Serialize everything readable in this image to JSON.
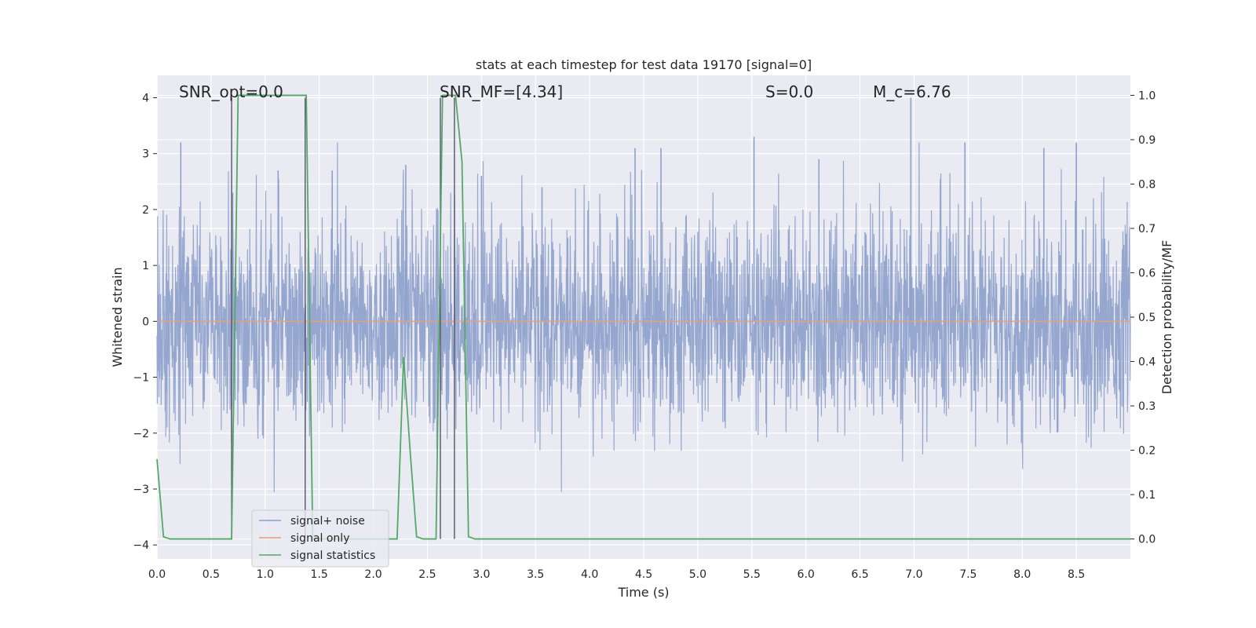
{
  "chart_data": {
    "type": "line",
    "title": "stats at each timestep for test data 19170 [signal=0]",
    "xlabel": "Time (s)",
    "ylabel": "Whitened strain",
    "y2label": "Detection probability/MF",
    "xlim": [
      0.0,
      9.0
    ],
    "ylim": [
      -4.25,
      4.4
    ],
    "y2lim": [
      -0.045,
      1.045
    ],
    "xticks": [
      "0.0",
      "0.5",
      "1.0",
      "1.5",
      "2.0",
      "2.5",
      "3.0",
      "3.5",
      "4.0",
      "4.5",
      "5.0",
      "5.5",
      "6.0",
      "6.5",
      "7.0",
      "7.5",
      "8.0",
      "8.5"
    ],
    "yticks": [
      "−4",
      "−3",
      "−2",
      "−1",
      "0",
      "1",
      "2",
      "3",
      "4"
    ],
    "y2ticks": [
      "0.0",
      "0.1",
      "0.2",
      "0.3",
      "0.4",
      "0.5",
      "0.6",
      "0.7",
      "0.8",
      "0.9",
      "1.0"
    ],
    "grid": true,
    "legend_position": "lower-left",
    "annotations": [
      {
        "text": "SNR_opt=0.0"
      },
      {
        "text": "SNR_MF=[4.34]"
      },
      {
        "text": "S=0.0"
      },
      {
        "text": "M_c=6.76"
      }
    ],
    "series": [
      {
        "name": "signal+ noise",
        "color": "#8da0cb",
        "axis": "left",
        "description_values": "dense whitened noise, amplitude mostly within ±1.5 with spikes to ±3.2",
        "peak_x": [
          0.22,
          0.7,
          1.12,
          1.62,
          2.3,
          3.0,
          3.56,
          4.42,
          4.66,
          5.52,
          6.12,
          6.97,
          7.47,
          8.2,
          8.5
        ],
        "peak_y": [
          3.2,
          2.3,
          2.7,
          2.7,
          2.8,
          2.6,
          2.4,
          3.1,
          3.1,
          3.3,
          2.9,
          4.0,
          3.2,
          3.1,
          3.2
        ]
      },
      {
        "name": "signal only",
        "color": "#e5a07e",
        "axis": "left",
        "x": [
          0.0,
          9.0
        ],
        "y": [
          0.0,
          0.0
        ]
      },
      {
        "name": "signal statistics",
        "color": "#55a868",
        "axis": "right",
        "x": [
          0.0,
          0.06,
          0.12,
          0.18,
          0.24,
          0.3,
          0.36,
          0.42,
          0.48,
          0.54,
          0.6,
          0.66,
          0.69,
          0.75,
          0.81,
          0.87,
          0.93,
          0.99,
          1.05,
          1.11,
          1.17,
          1.23,
          1.29,
          1.35,
          1.38,
          1.44,
          1.5,
          1.56,
          1.62,
          1.68,
          1.74,
          1.8,
          1.86,
          1.92,
          1.98,
          2.04,
          2.1,
          2.16,
          2.22,
          2.28,
          2.34,
          2.4,
          2.46,
          2.52,
          2.58,
          2.64,
          2.7,
          2.76,
          2.82,
          2.88,
          2.94,
          3.0,
          9.0
        ],
        "y": [
          0.18,
          0.005,
          0.0,
          0.0,
          0.0,
          0.0,
          0.0,
          0.0,
          0.0,
          0.0,
          0.0,
          0.0,
          0.0,
          1.0,
          1.0,
          1.0,
          1.0,
          1.0,
          1.0,
          1.0,
          1.0,
          1.0,
          1.0,
          1.0,
          1.0,
          0.0,
          0.0,
          0.0,
          0.0,
          0.0,
          0.0,
          0.0,
          0.0,
          0.0,
          0.0,
          0.0,
          0.0,
          0.0,
          0.0,
          0.41,
          0.2,
          0.005,
          0.0,
          0.0,
          0.0,
          1.0,
          1.0,
          1.0,
          0.85,
          0.005,
          0.0,
          0.0,
          0.0
        ]
      }
    ],
    "vertical_markers_x": [
      0.69,
      1.37,
      2.62,
      2.75
    ]
  }
}
